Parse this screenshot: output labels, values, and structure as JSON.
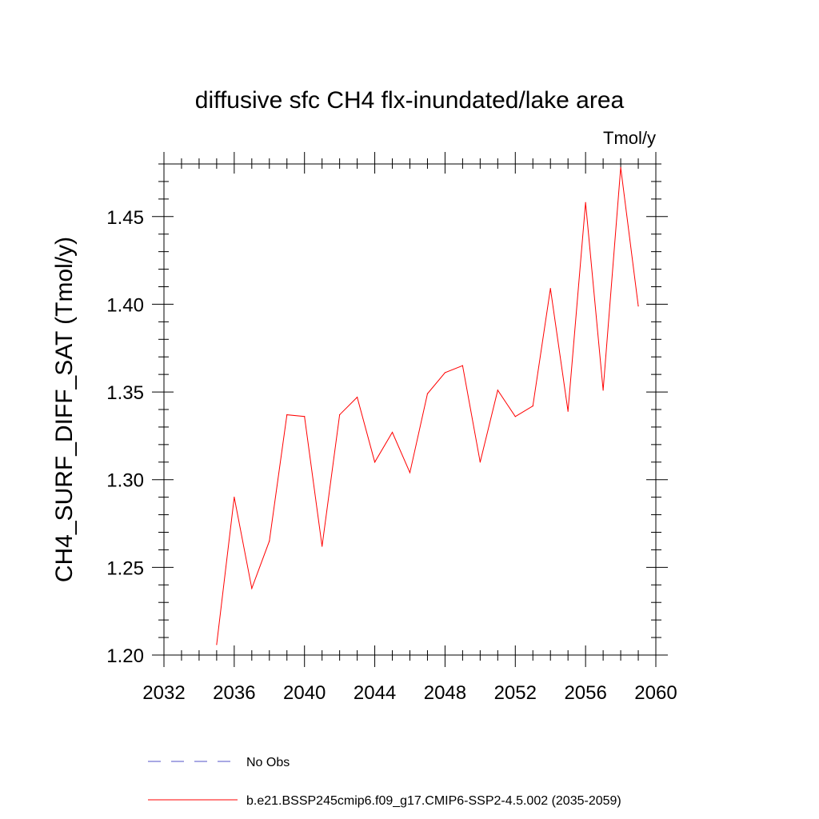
{
  "chart_data": {
    "type": "line",
    "title": "diffusive sfc CH4 flx-inundated/lake area",
    "units": "Tmol/y",
    "ylabel": "CH4_SURF_DIFF_SAT  (Tmol/y)",
    "xlabel": "",
    "xlim": [
      2032,
      2060
    ],
    "ylim": [
      1.2,
      1.48
    ],
    "xticks": [
      2032,
      2036,
      2040,
      2044,
      2048,
      2052,
      2056,
      2060
    ],
    "yticks": [
      1.2,
      1.25,
      1.3,
      1.35,
      1.4,
      1.45
    ],
    "ytick_labels": [
      "1.20",
      "1.25",
      "1.30",
      "1.35",
      "1.40",
      "1.45"
    ],
    "series": [
      {
        "name": "b.e21.BSSP245cmip6.f09_g17.CMIP6-SSP2-4.5.002 (2035-2059)",
        "color": "#ff0000",
        "x": [
          2035,
          2036,
          2037,
          2038,
          2039,
          2040,
          2041,
          2042,
          2043,
          2044,
          2045,
          2046,
          2047,
          2048,
          2049,
          2050,
          2051,
          2052,
          2053,
          2054,
          2055,
          2056,
          2057,
          2058,
          2059
        ],
        "values": [
          1.206,
          1.29,
          1.238,
          1.265,
          1.337,
          1.336,
          1.262,
          1.337,
          1.347,
          1.31,
          1.327,
          1.304,
          1.349,
          1.361,
          1.365,
          1.31,
          1.351,
          1.336,
          1.342,
          1.409,
          1.339,
          1.458,
          1.351,
          1.478,
          1.399
        ]
      }
    ],
    "legend": [
      {
        "label": "No Obs",
        "color": "#5050c8",
        "style": "dashed"
      },
      {
        "label": "b.e21.BSSP245cmip6.f09_g17.CMIP6-SSP2-4.5.002 (2035-2059)",
        "color": "#ff0000",
        "style": "solid"
      }
    ]
  }
}
